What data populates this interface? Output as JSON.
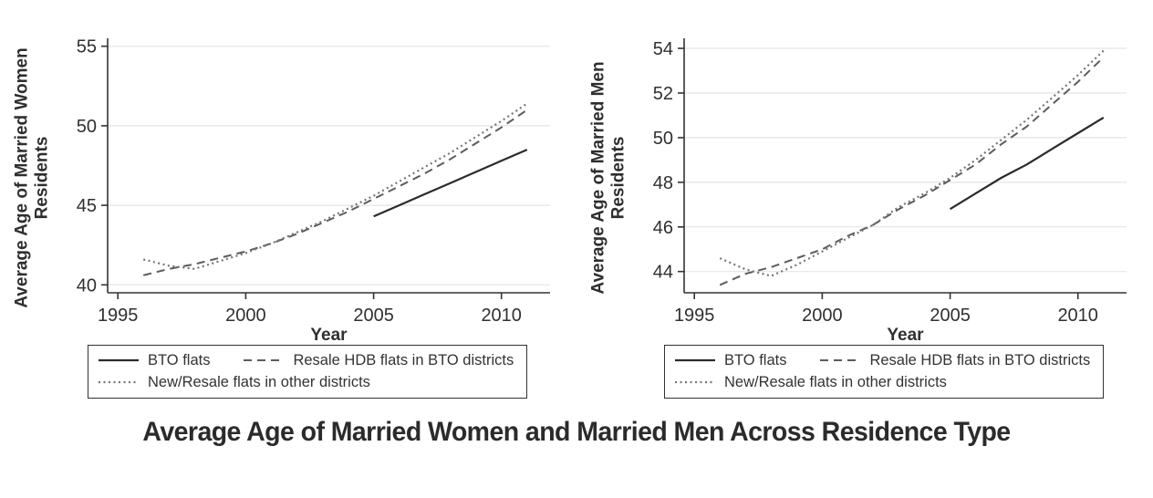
{
  "figure_title": "Average Age of Married Women and Married Men Across Residence Type",
  "style": {
    "axis_color": "#333333",
    "grid_color": "#e4e4e4",
    "text_color": "#303030",
    "tick_font_size": 20,
    "line_styles": {
      "solid": {
        "color": "#2b2b2b",
        "width": 2.2,
        "dash": ""
      },
      "dashed": {
        "color": "#5c5c5c",
        "width": 2.0,
        "dash": "9 6"
      },
      "dotted": {
        "color": "#757575",
        "width": 2.2,
        "dash": "2 3.5"
      }
    }
  },
  "chart_data": [
    {
      "type": "line",
      "ylabel": "Average Age of Married Women Residents",
      "ylabel_lines": [
        "Average Age of Married Women",
        "Residents"
      ],
      "xlabel": "Year",
      "xlim": [
        1994.6,
        2011.9
      ],
      "ylim": [
        39.5,
        55.5
      ],
      "x_ticks": [
        1995,
        2000,
        2005,
        2010
      ],
      "y_ticks": [
        40,
        45,
        50,
        55
      ],
      "grid": "horizontal",
      "legend_position": "below",
      "series": [
        {
          "name": "BTO flats",
          "style": "solid",
          "x": [
            2005,
            2006,
            2007,
            2008,
            2009,
            2010,
            2011
          ],
          "values": [
            44.3,
            45.0,
            45.7,
            46.4,
            47.1,
            47.8,
            48.5
          ]
        },
        {
          "name": "Resale HDB flats in BTO districts",
          "style": "dashed",
          "x": [
            1996,
            1997,
            1998,
            1999,
            2000,
            2001,
            2002,
            2003,
            2004,
            2005,
            2006,
            2007,
            2008,
            2009,
            2010,
            2011
          ],
          "values": [
            40.6,
            41.0,
            41.3,
            41.7,
            42.1,
            42.6,
            43.2,
            43.9,
            44.6,
            45.4,
            46.2,
            47.0,
            47.9,
            48.9,
            49.9,
            51.0
          ]
        },
        {
          "name": "New/Resale flats in other districts",
          "style": "dotted",
          "x": [
            1996,
            1997,
            1998,
            1999,
            2000,
            2001,
            2002,
            2003,
            2004,
            2005,
            2006,
            2007,
            2008,
            2009,
            2010,
            2011
          ],
          "values": [
            41.6,
            41.2,
            41.0,
            41.5,
            42.0,
            42.6,
            43.3,
            44.0,
            44.8,
            45.6,
            46.5,
            47.4,
            48.3,
            49.3,
            50.3,
            51.4
          ]
        }
      ]
    },
    {
      "type": "line",
      "ylabel": "Average Age of Married Men Residents",
      "ylabel_lines": [
        "Average Age of Married Men",
        "Residents"
      ],
      "xlabel": "Year",
      "xlim": [
        1994.6,
        2011.9
      ],
      "ylim": [
        43.05,
        54.45
      ],
      "x_ticks": [
        1995,
        2000,
        2005,
        2010
      ],
      "y_ticks": [
        44,
        46,
        48,
        50,
        52,
        54
      ],
      "grid": "horizontal",
      "legend_position": "below",
      "series": [
        {
          "name": "BTO flats",
          "style": "solid",
          "x": [
            2005,
            2006,
            2007,
            2008,
            2009,
            2010,
            2011
          ],
          "values": [
            46.8,
            47.5,
            48.2,
            48.8,
            49.5,
            50.2,
            50.9
          ]
        },
        {
          "name": "Resale HDB flats in BTO districts",
          "style": "dashed",
          "x": [
            1996,
            1997,
            1998,
            1999,
            2000,
            2001,
            2002,
            2003,
            2004,
            2005,
            2006,
            2007,
            2008,
            2009,
            2010,
            2011
          ],
          "values": [
            43.4,
            43.9,
            44.2,
            44.6,
            45.0,
            45.6,
            46.1,
            46.8,
            47.4,
            48.1,
            48.8,
            49.7,
            50.5,
            51.5,
            52.5,
            53.6
          ]
        },
        {
          "name": "New/Resale flats in other districts",
          "style": "dotted",
          "x": [
            1996,
            1997,
            1998,
            1999,
            2000,
            2001,
            2002,
            2003,
            2004,
            2005,
            2006,
            2007,
            2008,
            2009,
            2010,
            2011
          ],
          "values": [
            44.6,
            44.1,
            43.8,
            44.3,
            44.9,
            45.5,
            46.1,
            46.9,
            47.5,
            48.2,
            49.0,
            49.9,
            50.8,
            51.8,
            52.8,
            53.9
          ]
        }
      ]
    }
  ]
}
